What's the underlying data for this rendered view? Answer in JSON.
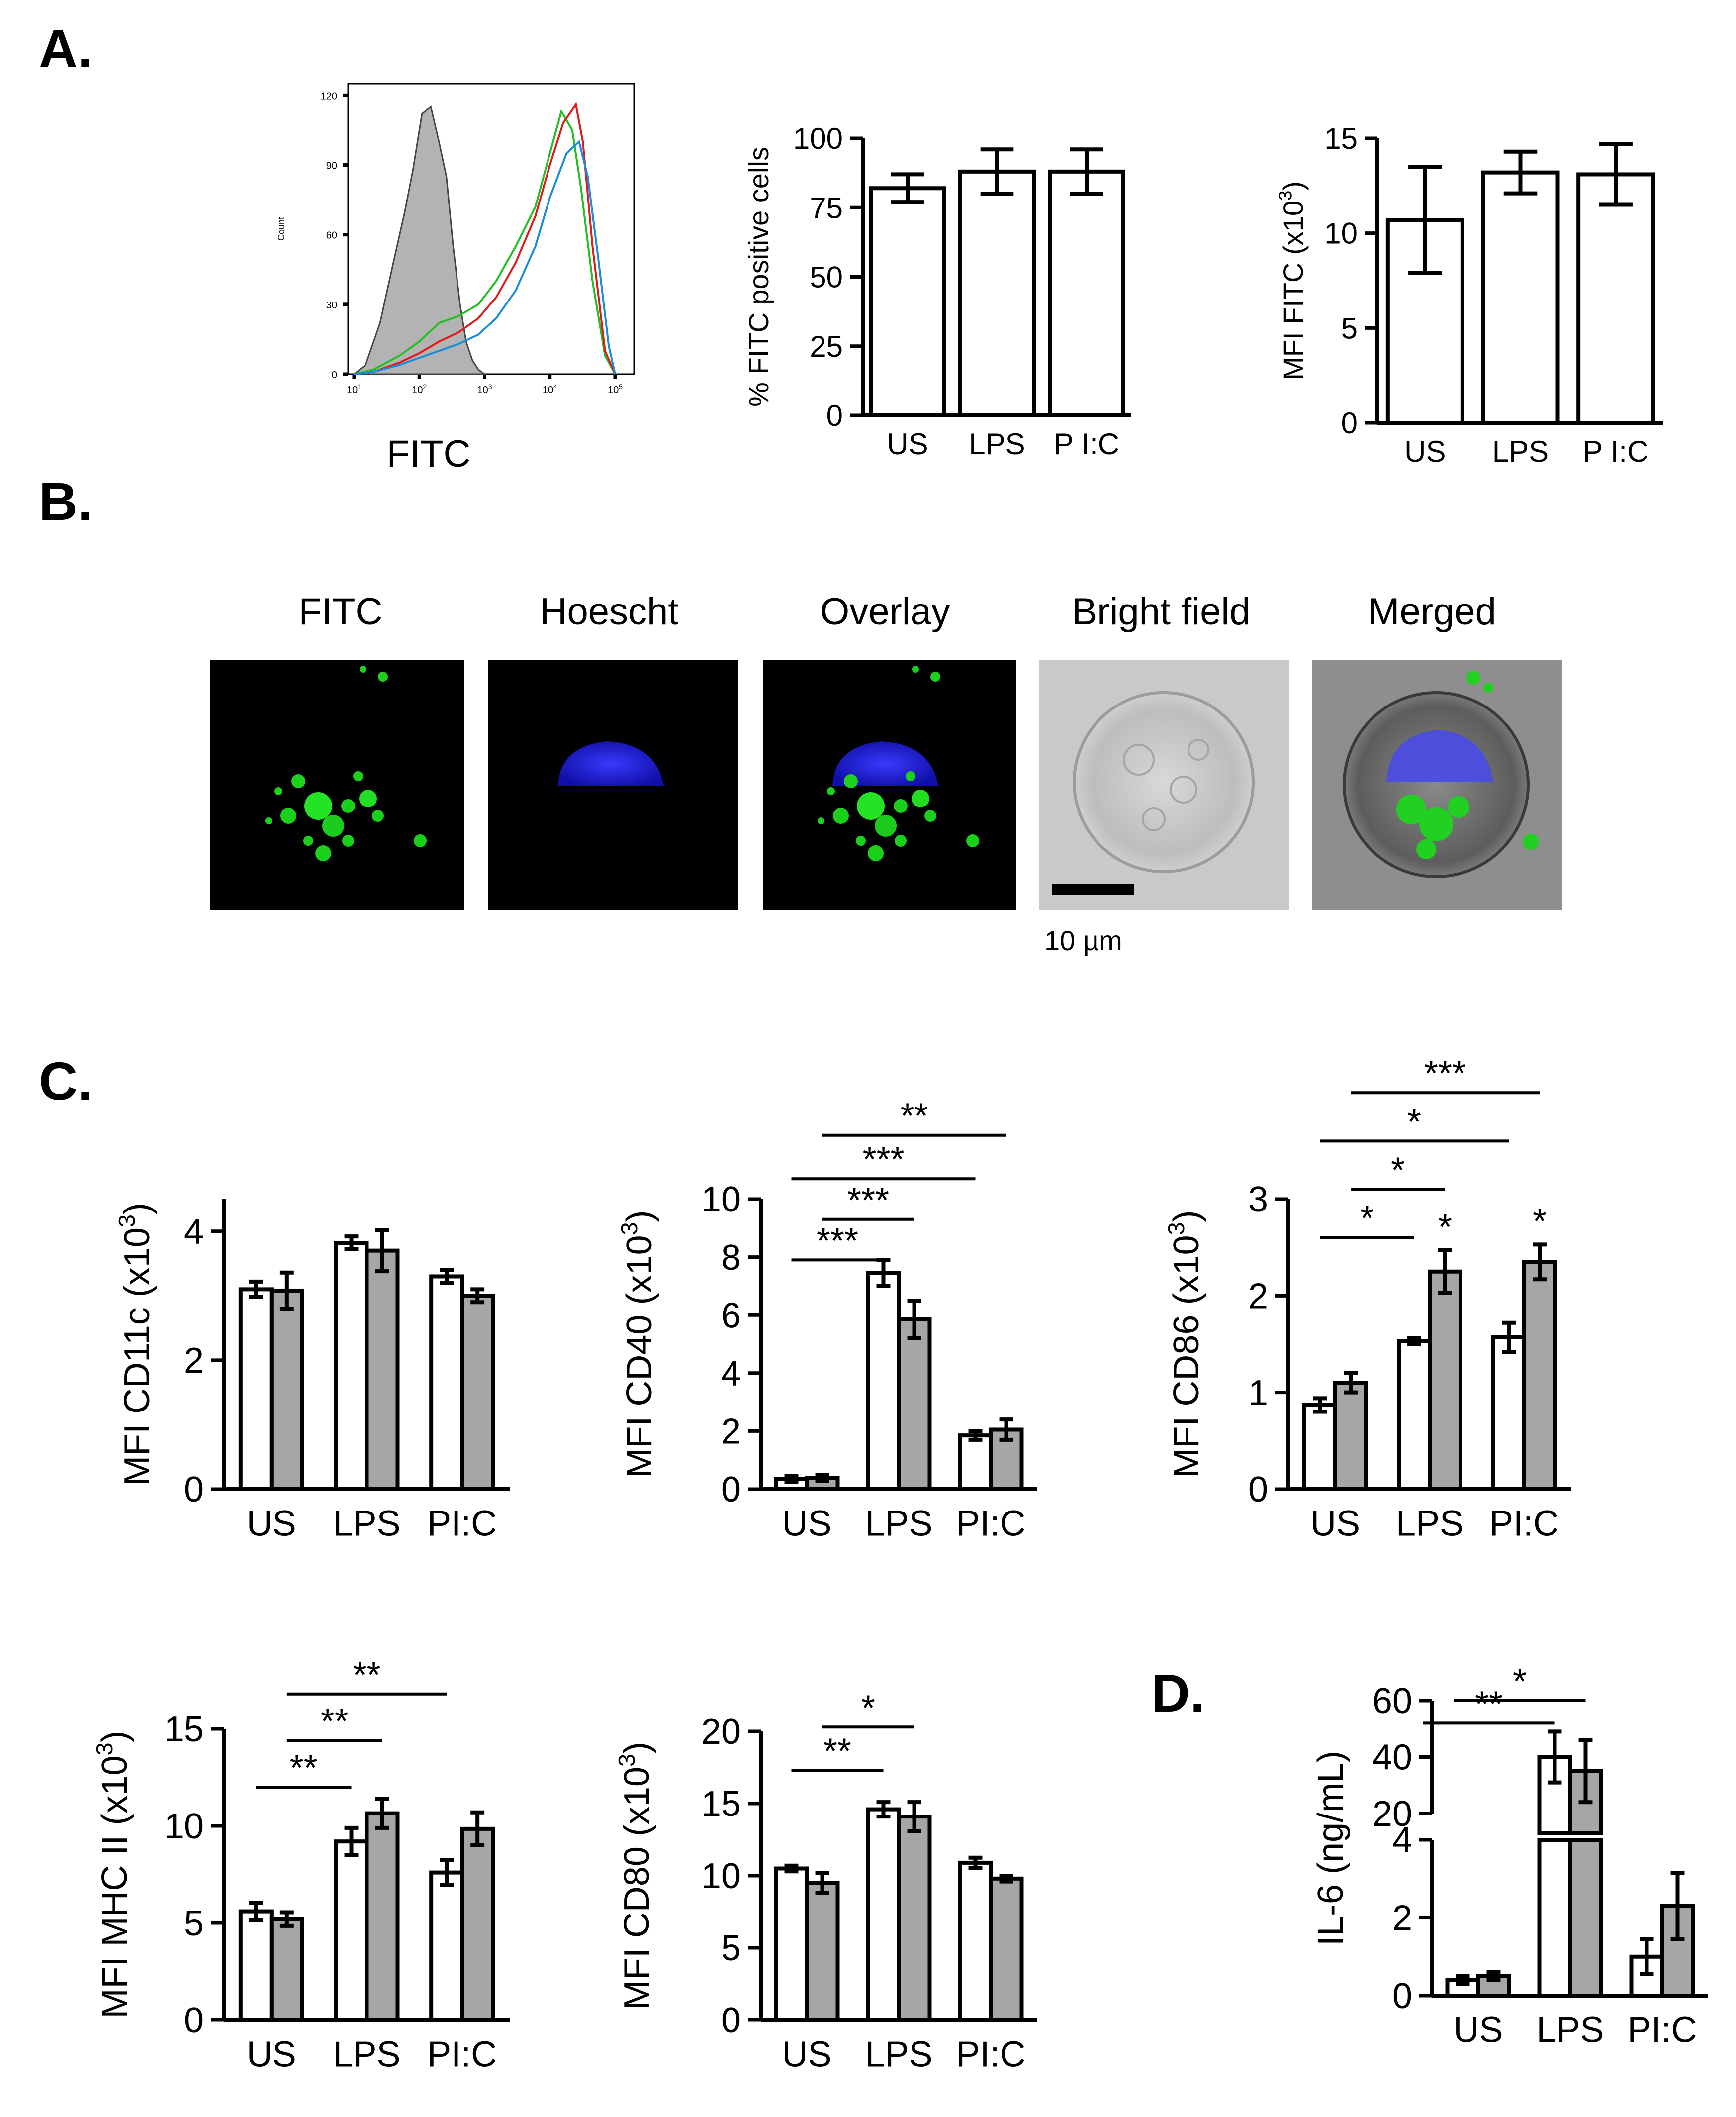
{
  "colors": {
    "unstim_fill": "#ffffff",
    "alt_fill": "#a6a6a6",
    "hist_grey": "#b3b3b3",
    "green": "#22c022",
    "red": "#e01b1b",
    "blue": "#1a8cdc",
    "hoechst": "#1e1edc",
    "bright": "#c8c8c8"
  },
  "panel_labels": {
    "a": "A.",
    "b": "B.",
    "c": "C.",
    "d": "D."
  },
  "imaging": {
    "titles": [
      "FITC",
      "Hoescht",
      "Overlay",
      "Bright field",
      "Merged"
    ],
    "scale_bar_label": "10 µm",
    "panel_icons": [
      "fitc-fluorescence-image",
      "hoechst-nuclear-image",
      "overlay-image",
      "bright-field-image",
      "merged-image"
    ]
  },
  "chart_data": [
    {
      "id": "hist",
      "type": "area",
      "title": "",
      "xlabel": "FITC",
      "ylabel": "Count",
      "xscale": "log",
      "xticks": [
        "10",
        "10",
        "10",
        "10",
        "10"
      ],
      "xtick_exponents": [
        "1",
        "2",
        "3",
        "4",
        "5"
      ],
      "xtick_values": [
        10,
        100,
        1000,
        10000,
        100000
      ],
      "ylim": [
        0,
        125
      ],
      "yticks": [
        0,
        30,
        60,
        90,
        120
      ],
      "series": [
        {
          "name": "unstained",
          "style": "grey-filled",
          "x": [
            10,
            15,
            25,
            40,
            60,
            80,
            110,
            150,
            200,
            260,
            330,
            420,
            520,
            650,
            800,
            1000
          ],
          "y": [
            0,
            4,
            22,
            48,
            70,
            88,
            112,
            115,
            100,
            85,
            55,
            30,
            14,
            6,
            2,
            0
          ]
        },
        {
          "name": "green",
          "style": "line",
          "x": [
            10,
            20,
            50,
            100,
            200,
            400,
            800,
            1500,
            3000,
            6000,
            10000,
            15000,
            22000,
            30000,
            45000,
            70000,
            100000
          ],
          "y": [
            0,
            2,
            8,
            14,
            22,
            25,
            30,
            40,
            55,
            72,
            95,
            113,
            105,
            80,
            40,
            8,
            0
          ]
        },
        {
          "name": "red",
          "style": "line",
          "x": [
            10,
            20,
            50,
            100,
            200,
            400,
            800,
            1500,
            3000,
            6000,
            10000,
            16000,
            25000,
            32000,
            45000,
            70000,
            100000
          ],
          "y": [
            0,
            1,
            5,
            9,
            14,
            18,
            24,
            33,
            48,
            68,
            90,
            108,
            116,
            100,
            55,
            10,
            0
          ]
        },
        {
          "name": "blue",
          "style": "line",
          "x": [
            10,
            20,
            50,
            100,
            200,
            400,
            800,
            1500,
            3000,
            6000,
            10000,
            18000,
            28000,
            38000,
            55000,
            80000,
            100000
          ],
          "y": [
            0,
            1,
            4,
            7,
            10,
            13,
            17,
            24,
            36,
            55,
            76,
            95,
            100,
            85,
            50,
            12,
            0
          ]
        }
      ]
    },
    {
      "id": "pctFITC",
      "type": "bar",
      "ylabel": "% FITC positive cells",
      "categories": [
        "US",
        "LPS",
        "P I:C"
      ],
      "ylim": [
        0,
        100
      ],
      "yticks": [
        0,
        25,
        50,
        75,
        100
      ],
      "series": [
        {
          "name": "FITC positive",
          "values": [
            82,
            88,
            88
          ],
          "errors": [
            5,
            8,
            8
          ]
        }
      ],
      "significance": []
    },
    {
      "id": "mfiFITC",
      "type": "bar",
      "ylabel": "MFI FITC (x10",
      "ylabel_sup": "3",
      "ylabel_end": ")",
      "categories": [
        "US",
        "LPS",
        "P I:C"
      ],
      "ylim": [
        0,
        15
      ],
      "yticks": [
        0,
        5,
        10,
        15
      ],
      "series": [
        {
          "name": "MFI FITC",
          "values": [
            10.7,
            13.2,
            13.1
          ],
          "errors": [
            2.8,
            1.1,
            1.6
          ]
        }
      ],
      "significance": []
    },
    {
      "id": "cd11c",
      "type": "bar",
      "ylabel": "MFI CD11c (x10",
      "ylabel_sup": "3",
      "ylabel_end": ")",
      "categories": [
        "US",
        "LPS",
        "PI:C"
      ],
      "ylim": [
        0,
        4.5
      ],
      "yticks": [
        0,
        2,
        4
      ],
      "series": [
        {
          "name": "white",
          "values": [
            3.1,
            3.82,
            3.3
          ],
          "errors": [
            0.12,
            0.1,
            0.1
          ]
        },
        {
          "name": "grey",
          "values": [
            3.08,
            3.7,
            3.0
          ],
          "errors": [
            0.28,
            0.32,
            0.1
          ]
        }
      ],
      "significance": []
    },
    {
      "id": "cd40",
      "type": "bar",
      "ylabel": "MFI CD40 (x10",
      "ylabel_sup": "3",
      "ylabel_end": ")",
      "categories": [
        "US",
        "LPS",
        "PI:C"
      ],
      "ylim": [
        0,
        10
      ],
      "yticks": [
        0,
        2,
        4,
        6,
        8,
        10
      ],
      "series": [
        {
          "name": "white",
          "values": [
            0.35,
            7.45,
            1.85
          ],
          "errors": [
            0.1,
            0.45,
            0.15
          ]
        },
        {
          "name": "grey",
          "values": [
            0.38,
            5.85,
            2.05
          ],
          "errors": [
            0.1,
            0.65,
            0.35
          ]
        }
      ],
      "significance": [
        {
          "label": "***",
          "from": [
            0,
            0
          ],
          "to": [
            1,
            0
          ],
          "level": 7.9
        },
        {
          "label": "***",
          "from": [
            0,
            1
          ],
          "to": [
            1,
            1
          ],
          "level": 9.3
        },
        {
          "label": "***",
          "from": [
            0,
            0
          ],
          "to": [
            2,
            0
          ],
          "level": 10.7
        },
        {
          "label": "**",
          "from": [
            0,
            1
          ],
          "to": [
            2,
            1
          ],
          "level": 12.2
        }
      ]
    },
    {
      "id": "cd86",
      "type": "bar",
      "ylabel": "MFI CD86 (x10",
      "ylabel_sup": "3",
      "ylabel_end": ")",
      "categories": [
        "US",
        "LPS",
        "PI:C"
      ],
      "ylim": [
        0,
        3
      ],
      "yticks": [
        0,
        1,
        2,
        3
      ],
      "series": [
        {
          "name": "white",
          "values": [
            0.87,
            1.53,
            1.57
          ],
          "errors": [
            0.07,
            0.03,
            0.15
          ]
        },
        {
          "name": "grey",
          "values": [
            1.1,
            2.25,
            2.35
          ],
          "errors": [
            0.1,
            0.22,
            0.18
          ]
        }
      ],
      "significance": [
        {
          "label": "*",
          "from": [
            0,
            0
          ],
          "to": [
            1,
            0
          ],
          "level": 2.6
        },
        {
          "label": "*",
          "from": [
            0,
            1
          ],
          "to": [
            1,
            1
          ],
          "level": 3.1
        },
        {
          "label": "*",
          "from": [
            0,
            0
          ],
          "to": [
            2,
            0
          ],
          "level": 3.6
        },
        {
          "label": "***",
          "from": [
            0,
            1
          ],
          "to": [
            2,
            1
          ],
          "level": 4.1
        }
      ],
      "bar_marks": [
        {
          "label": "*",
          "cat": 1,
          "series": 1
        },
        {
          "label": "*",
          "cat": 2,
          "series": 1
        }
      ]
    },
    {
      "id": "mhc",
      "type": "bar",
      "ylabel": "MFI MHC II (x10",
      "ylabel_sup": "3",
      "ylabel_end": ")",
      "categories": [
        "US",
        "LPS",
        "PI:C"
      ],
      "ylim": [
        0,
        15
      ],
      "yticks": [
        0,
        5,
        10,
        15
      ],
      "series": [
        {
          "name": "white",
          "values": [
            5.6,
            9.2,
            7.6
          ],
          "errors": [
            0.45,
            0.7,
            0.65
          ]
        },
        {
          "name": "grey",
          "values": [
            5.2,
            10.65,
            9.85
          ],
          "errors": [
            0.35,
            0.75,
            0.85
          ]
        }
      ],
      "significance": [
        {
          "label": "**",
          "from": [
            0,
            0
          ],
          "to": [
            1,
            0
          ],
          "level": 12.0
        },
        {
          "label": "**",
          "from": [
            0,
            1
          ],
          "to": [
            1,
            1
          ],
          "level": 14.4
        },
        {
          "label": "**",
          "from": [
            0,
            1
          ],
          "to": [
            2,
            0
          ],
          "level": 16.8
        }
      ]
    },
    {
      "id": "cd80",
      "type": "bar",
      "ylabel": "MFI CD80 (x10",
      "ylabel_sup": "3",
      "ylabel_end": ")",
      "categories": [
        "US",
        "LPS",
        "PI:C"
      ],
      "ylim": [
        0,
        20
      ],
      "yticks": [
        0,
        5,
        10,
        15,
        20
      ],
      "series": [
        {
          "name": "white",
          "values": [
            10.5,
            14.6,
            10.9
          ],
          "errors": [
            0.2,
            0.5,
            0.35
          ]
        },
        {
          "name": "grey",
          "values": [
            9.5,
            14.1,
            9.8
          ],
          "errors": [
            0.7,
            1.0,
            0.2
          ]
        }
      ],
      "significance": [
        {
          "label": "**",
          "from": [
            0,
            0
          ],
          "to": [
            1,
            0
          ],
          "level": 17.3
        },
        {
          "label": "*",
          "from": [
            0,
            1
          ],
          "to": [
            1,
            1
          ],
          "level": 20.3
        }
      ]
    },
    {
      "id": "il6",
      "type": "bar",
      "ylabel": "IL-6 (ng/mL)",
      "categories": [
        "US",
        "LPS",
        "PI:C"
      ],
      "broken_axis": true,
      "lower_ylim": [
        0,
        4
      ],
      "lower_yticks": [
        0,
        2,
        4
      ],
      "upper_ylim": [
        20,
        60
      ],
      "upper_yticks": [
        20,
        40,
        60
      ],
      "series": [
        {
          "name": "white",
          "values": [
            0.4,
            40,
            1.0
          ],
          "errors": [
            0.1,
            9,
            0.45
          ]
        },
        {
          "name": "grey",
          "values": [
            0.5,
            35,
            2.3
          ],
          "errors": [
            0.1,
            11,
            0.85
          ]
        }
      ],
      "significance": [
        {
          "label": "**",
          "from": [
            0,
            0
          ],
          "to": [
            1,
            0
          ],
          "level": 52
        },
        {
          "label": "*",
          "from": [
            0,
            1
          ],
          "to": [
            1,
            1
          ],
          "level": 60
        }
      ]
    }
  ]
}
